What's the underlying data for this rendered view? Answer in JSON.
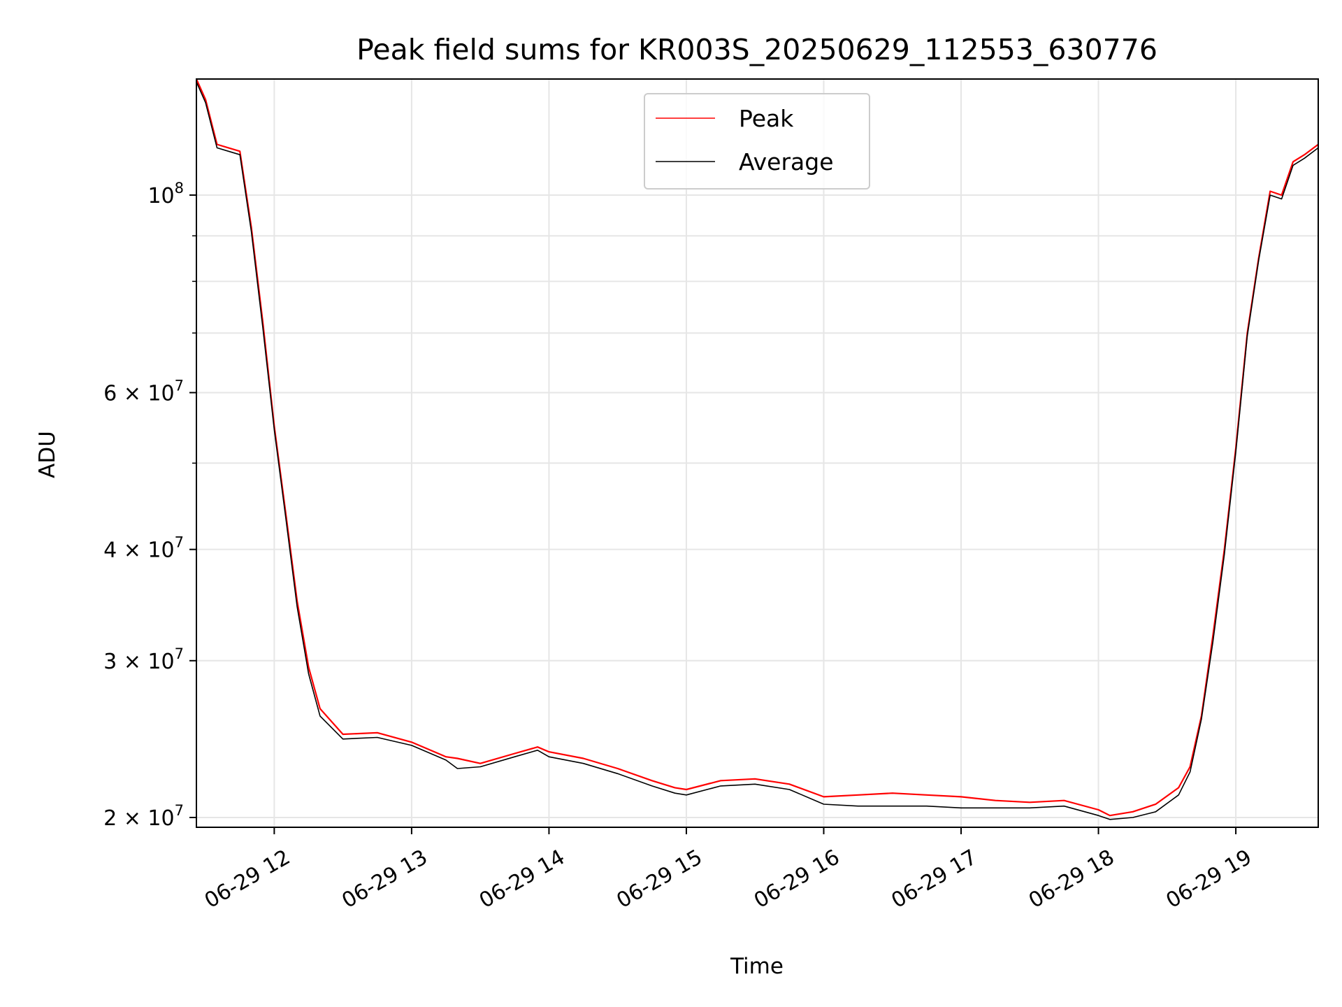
{
  "chart_data": {
    "type": "line",
    "title": "Peak field sums for KR003S_20250629_112553_630776",
    "xlabel": "Time",
    "ylabel": "ADU",
    "y_scale": "log",
    "xlim": [
      "2025-06-29 11:26",
      "2025-06-29 19:36"
    ],
    "ylim": [
      19500000,
      135000000
    ],
    "grid": true,
    "legend": "top-center",
    "x_tick_labels": [
      "06-29 12",
      "06-29 13",
      "06-29 14",
      "06-29 15",
      "06-29 16",
      "06-29 17",
      "06-29 18",
      "06-29 19"
    ],
    "x_ticks": [
      "2025-06-29 12:00",
      "2025-06-29 13:00",
      "2025-06-29 14:00",
      "2025-06-29 15:00",
      "2025-06-29 16:00",
      "2025-06-29 17:00",
      "2025-06-29 18:00",
      "2025-06-29 19:00"
    ],
    "y_ticks": [
      {
        "value": 100000000,
        "base": "10",
        "exp": "8"
      },
      {
        "value": 60000000,
        "base": "6 × 10",
        "exp": "7"
      },
      {
        "value": 40000000,
        "base": "4 × 10",
        "exp": "7"
      },
      {
        "value": 30000000,
        "base": "3 × 10",
        "exp": "7"
      },
      {
        "value": 20000000,
        "base": "2 × 10",
        "exp": "7"
      }
    ],
    "y_minor_ticks": [
      50000000,
      70000000,
      80000000,
      90000000
    ],
    "series": [
      {
        "name": "Peak",
        "color": "#ff0000",
        "x": [
          "2025-06-29 11:26",
          "2025-06-29 11:30",
          "2025-06-29 11:35",
          "2025-06-29 11:40",
          "2025-06-29 11:45",
          "2025-06-29 11:50",
          "2025-06-29 11:55",
          "2025-06-29 12:00",
          "2025-06-29 12:05",
          "2025-06-29 12:10",
          "2025-06-29 12:15",
          "2025-06-29 12:20",
          "2025-06-29 12:30",
          "2025-06-29 12:45",
          "2025-06-29 13:00",
          "2025-06-29 13:15",
          "2025-06-29 13:20",
          "2025-06-29 13:30",
          "2025-06-29 13:45",
          "2025-06-29 13:55",
          "2025-06-29 14:00",
          "2025-06-29 14:15",
          "2025-06-29 14:30",
          "2025-06-29 14:45",
          "2025-06-29 14:55",
          "2025-06-29 15:00",
          "2025-06-29 15:15",
          "2025-06-29 15:30",
          "2025-06-29 15:45",
          "2025-06-29 16:00",
          "2025-06-29 16:15",
          "2025-06-29 16:30",
          "2025-06-29 16:45",
          "2025-06-29 17:00",
          "2025-06-29 17:15",
          "2025-06-29 17:30",
          "2025-06-29 17:45",
          "2025-06-29 18:00",
          "2025-06-29 18:05",
          "2025-06-29 18:15",
          "2025-06-29 18:25",
          "2025-06-29 18:35",
          "2025-06-29 18:40",
          "2025-06-29 18:45",
          "2025-06-29 18:50",
          "2025-06-29 18:55",
          "2025-06-29 19:00",
          "2025-06-29 19:05",
          "2025-06-29 19:10",
          "2025-06-29 19:15",
          "2025-06-29 19:20",
          "2025-06-29 19:25",
          "2025-06-29 19:30",
          "2025-06-29 19:36"
        ],
        "values": [
          135000000,
          128000000,
          114000000,
          113000000,
          112000000,
          92000000,
          72000000,
          55000000,
          44000000,
          35000000,
          29500000,
          26500000,
          24800000,
          24900000,
          24300000,
          23400000,
          23300000,
          23000000,
          23600000,
          24000000,
          23700000,
          23300000,
          22700000,
          22000000,
          21600000,
          21500000,
          22000000,
          22100000,
          21800000,
          21100000,
          21200000,
          21300000,
          21200000,
          21100000,
          20900000,
          20800000,
          20900000,
          20400000,
          20100000,
          20300000,
          20700000,
          21600000,
          22800000,
          26000000,
          32000000,
          40000000,
          52000000,
          70000000,
          85000000,
          101000000,
          100000000,
          109000000,
          111000000,
          114000000
        ]
      },
      {
        "name": "Average",
        "color": "#000000",
        "x": [
          "2025-06-29 11:26",
          "2025-06-29 11:30",
          "2025-06-29 11:35",
          "2025-06-29 11:40",
          "2025-06-29 11:45",
          "2025-06-29 11:50",
          "2025-06-29 11:55",
          "2025-06-29 12:00",
          "2025-06-29 12:05",
          "2025-06-29 12:10",
          "2025-06-29 12:15",
          "2025-06-29 12:20",
          "2025-06-29 12:30",
          "2025-06-29 12:45",
          "2025-06-29 13:00",
          "2025-06-29 13:15",
          "2025-06-29 13:20",
          "2025-06-29 13:30",
          "2025-06-29 13:45",
          "2025-06-29 13:55",
          "2025-06-29 14:00",
          "2025-06-29 14:15",
          "2025-06-29 14:30",
          "2025-06-29 14:45",
          "2025-06-29 14:55",
          "2025-06-29 15:00",
          "2025-06-29 15:15",
          "2025-06-29 15:30",
          "2025-06-29 15:45",
          "2025-06-29 16:00",
          "2025-06-29 16:15",
          "2025-06-29 16:30",
          "2025-06-29 16:45",
          "2025-06-29 17:00",
          "2025-06-29 17:15",
          "2025-06-29 17:30",
          "2025-06-29 17:45",
          "2025-06-29 18:00",
          "2025-06-29 18:05",
          "2025-06-29 18:15",
          "2025-06-29 18:25",
          "2025-06-29 18:35",
          "2025-06-29 18:40",
          "2025-06-29 18:45",
          "2025-06-29 18:50",
          "2025-06-29 18:55",
          "2025-06-29 19:00",
          "2025-06-29 19:05",
          "2025-06-29 19:10",
          "2025-06-29 19:15",
          "2025-06-29 19:20",
          "2025-06-29 19:25",
          "2025-06-29 19:30",
          "2025-06-29 19:36"
        ],
        "values": [
          134000000,
          127000000,
          113000000,
          112000000,
          111000000,
          91000000,
          71000000,
          54500000,
          43500000,
          34500000,
          29000000,
          26000000,
          24500000,
          24600000,
          24100000,
          23200000,
          22700000,
          22800000,
          23400000,
          23800000,
          23400000,
          23000000,
          22400000,
          21700000,
          21300000,
          21200000,
          21700000,
          21800000,
          21500000,
          20700000,
          20600000,
          20600000,
          20600000,
          20500000,
          20500000,
          20500000,
          20600000,
          20100000,
          19900000,
          20000000,
          20300000,
          21200000,
          22500000,
          25800000,
          31500000,
          39500000,
          51500000,
          69500000,
          84500000,
          100000000,
          99000000,
          108000000,
          110000000,
          113000000
        ]
      }
    ]
  }
}
